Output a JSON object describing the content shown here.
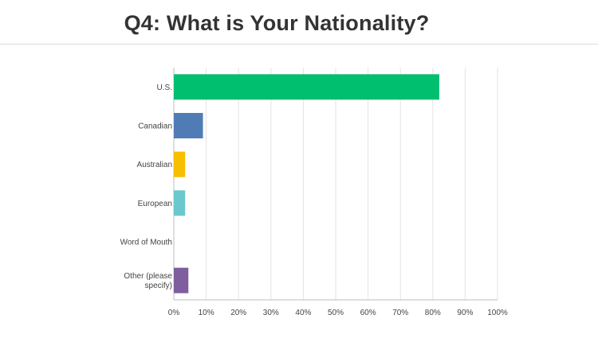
{
  "title": "Q4: What is Your Nationality?",
  "chart_data": {
    "type": "bar",
    "orientation": "horizontal",
    "categories": [
      {
        "lines": [
          "U.S."
        ],
        "value": 82,
        "color": "#00bf6f"
      },
      {
        "lines": [
          "Canadian"
        ],
        "value": 9,
        "color": "#507cb6"
      },
      {
        "lines": [
          "Australian"
        ],
        "value": 3.5,
        "color": "#f8be00"
      },
      {
        "lines": [
          "European"
        ],
        "value": 3.5,
        "color": "#6bc8cd"
      },
      {
        "lines": [
          "Word of Mouth"
        ],
        "value": 0,
        "color": "#7e5e9e"
      },
      {
        "lines": [
          "Other (please",
          "specify)"
        ],
        "value": 4.5,
        "color": "#7e5e9e"
      }
    ],
    "xlim": [
      0,
      100
    ],
    "xticks": [
      "0%",
      "10%",
      "20%",
      "30%",
      "40%",
      "50%",
      "60%",
      "70%",
      "80%",
      "90%",
      "100%"
    ],
    "grid": true
  }
}
